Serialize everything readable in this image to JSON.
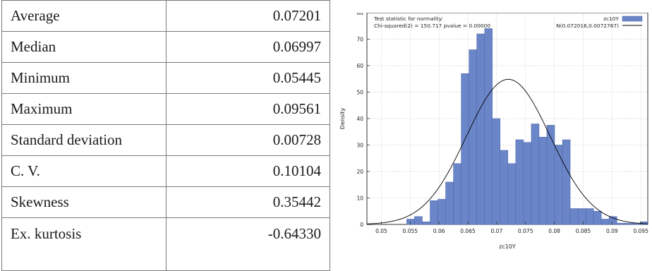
{
  "table": {
    "rows": [
      {
        "label": "Average",
        "value": "0.07201"
      },
      {
        "label": "Median",
        "value": "0.06997"
      },
      {
        "label": "Minimum",
        "value": "0.05445"
      },
      {
        "label": "Maximum",
        "value": "0.09561"
      },
      {
        "label": "Standard deviation",
        "value": "0.00728"
      },
      {
        "label": "C. V.",
        "value": "0.10104"
      },
      {
        "label": "Skewness",
        "value": "0.35442"
      },
      {
        "label": "Ex. kurtosis",
        "value": "-0.64330"
      }
    ]
  },
  "chart_data": {
    "type": "bar",
    "title": "",
    "xlabel": "zc10Y",
    "ylabel": "Density",
    "xlim": [
      0.0475,
      0.0962
    ],
    "ylim": [
      0,
      80
    ],
    "xticks": [
      "0.05",
      "0.055",
      "0.06",
      "0.065",
      "0.07",
      "0.075",
      "0.08",
      "0.085",
      "0.09",
      "0.095"
    ],
    "yticks": [
      "0",
      "10",
      "20",
      "30",
      "40",
      "50",
      "60",
      "70",
      "80"
    ],
    "annotation_lines": [
      "Test statistic for normality:",
      "Chi-squared(2) = 150.717 pvalue = 0.00000"
    ],
    "histogram": {
      "name": "zc10Y",
      "color": "#6b86c8",
      "bin_width": 0.00135,
      "bin_starts": [
        0.0544,
        0.05575,
        0.0571,
        0.05845,
        0.0598,
        0.06115,
        0.0625,
        0.06385,
        0.0652,
        0.06655,
        0.0679,
        0.06925,
        0.0706,
        0.07195,
        0.0733,
        0.07465,
        0.076,
        0.07735,
        0.0787,
        0.08005,
        0.0814,
        0.08275,
        0.0841,
        0.08545,
        0.0868,
        0.08815,
        0.0895,
        0.09085,
        0.0922,
        0.09355,
        0.0949
      ],
      "densities": [
        2,
        3,
        1,
        9,
        9.5,
        16,
        23,
        57,
        66,
        72,
        74,
        40,
        28,
        23,
        32,
        31,
        38,
        33,
        37.5,
        30,
        32,
        6,
        6,
        6,
        5,
        2,
        3,
        0.5,
        0.5,
        0.5,
        1
      ]
    },
    "normal_curve": {
      "name": "N(0.072016,0.0072767)",
      "mean": 0.072016,
      "sd": 0.0072767,
      "color": "#000000"
    }
  }
}
